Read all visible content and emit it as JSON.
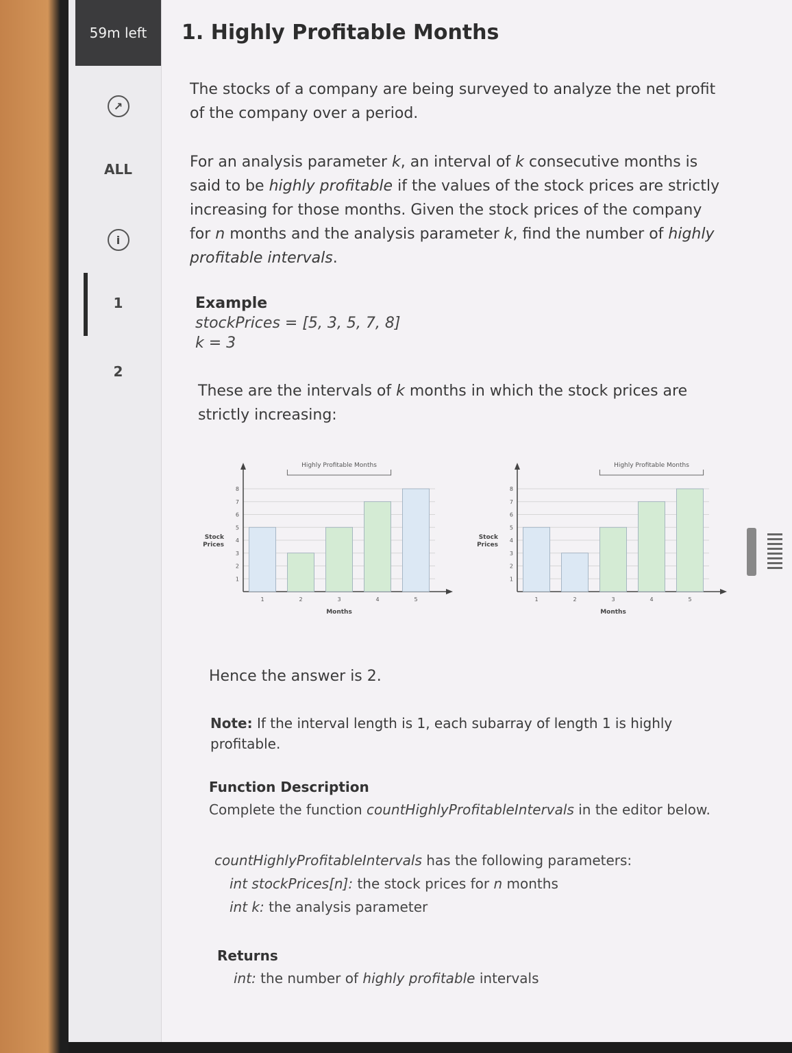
{
  "timer": "59m left",
  "sidebar": {
    "all_label": "ALL",
    "question_1": "1",
    "question_2": "2"
  },
  "title": "1. Highly Profitable Months",
  "intro": "The stocks of a company are being surveyed to analyze the net profit of the company over a period.",
  "definition": {
    "p1": "For an analysis parameter ",
    "k1": "k",
    "p2": ", an interval of ",
    "k2": "k",
    "p3": " consecutive months is said to be ",
    "hp": "highly profitable",
    "p4": " if the values of the stock prices are strictly increasing for those months. Given the stock prices of the company for ",
    "n": "n",
    "p5": " months and the analysis parameter ",
    "k3": "k",
    "p6": ", find the number of ",
    "hpi": "highly profitable intervals",
    "p7": "."
  },
  "example": {
    "heading": "Example",
    "stock_line": "stockPrices = [5, 3, 5, 7, 8]",
    "k_line": "k = 3"
  },
  "intervals_text": {
    "p1": "These are the intervals of ",
    "k": "k",
    "p2": " months in which the stock prices are strictly increasing:"
  },
  "chart_data": [
    {
      "type": "bar",
      "title": "Highly Profitable Months",
      "xlabel": "Months",
      "ylabel": "Stock Prices",
      "categories": [
        "1",
        "2",
        "3",
        "4",
        "5"
      ],
      "values": [
        5,
        3,
        5,
        7,
        8
      ],
      "highlighted": [
        2,
        3,
        4
      ],
      "ylim": [
        0,
        8
      ],
      "yticks": [
        "1",
        "2",
        "3",
        "4",
        "5",
        "6",
        "7",
        "8"
      ],
      "colors": {
        "normal": "#dce8f4",
        "highlight": "#d4ebd4"
      }
    },
    {
      "type": "bar",
      "title": "Highly Profitable Months",
      "xlabel": "Months",
      "ylabel": "Stock Prices",
      "categories": [
        "1",
        "2",
        "3",
        "4",
        "5"
      ],
      "values": [
        5,
        3,
        5,
        7,
        8
      ],
      "highlighted": [
        3,
        4,
        5
      ],
      "ylim": [
        0,
        8
      ],
      "yticks": [
        "1",
        "2",
        "3",
        "4",
        "5",
        "6",
        "7",
        "8"
      ],
      "colors": {
        "normal": "#dce8f4",
        "highlight": "#d4ebd4"
      }
    }
  ],
  "answer": "Hence the answer is 2.",
  "note": {
    "label": "Note:",
    "text": " If the interval length is 1, each subarray of length 1 is highly profitable."
  },
  "function_description": {
    "heading": "Function Description",
    "p1": "Complete the function ",
    "fn": "countHighlyProfitableIntervals",
    "p2": " in the editor below."
  },
  "parameters": {
    "fn": "countHighlyProfitableIntervals",
    "intro": " has the following parameters:",
    "param1_type": "int stockPrices[n]:",
    "param1_desc_a": " the stock prices for ",
    "param1_n": "n",
    "param1_desc_b": " months",
    "param2_type": "int k:",
    "param2_desc": " the analysis parameter"
  },
  "returns": {
    "heading": "Returns",
    "type": "int:",
    "desc_a": " the number of ",
    "hp": "highly profitable",
    "desc_b": " intervals"
  }
}
